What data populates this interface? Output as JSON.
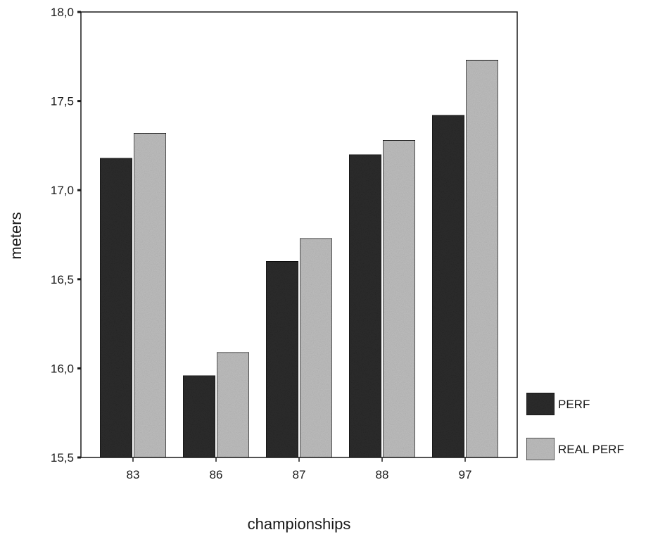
{
  "chart_data": {
    "type": "bar",
    "title": "",
    "xlabel": "championships",
    "ylabel": "meters",
    "categories": [
      "83",
      "86",
      "87",
      "88",
      "97"
    ],
    "series": [
      {
        "name": "PERF",
        "values": [
          17.18,
          15.96,
          16.6,
          17.2,
          17.42
        ],
        "color": "#2b2b2b"
      },
      {
        "name": "REAL PERF",
        "values": [
          17.32,
          16.09,
          16.73,
          17.28,
          17.73
        ],
        "color": "#bdbdbd"
      }
    ],
    "ylim": [
      15.5,
      18.0
    ],
    "yticks": [
      "15,5",
      "16,0",
      "16,5",
      "17,0",
      "17,5",
      "18,0"
    ],
    "grid": false,
    "legend_position": "right"
  }
}
